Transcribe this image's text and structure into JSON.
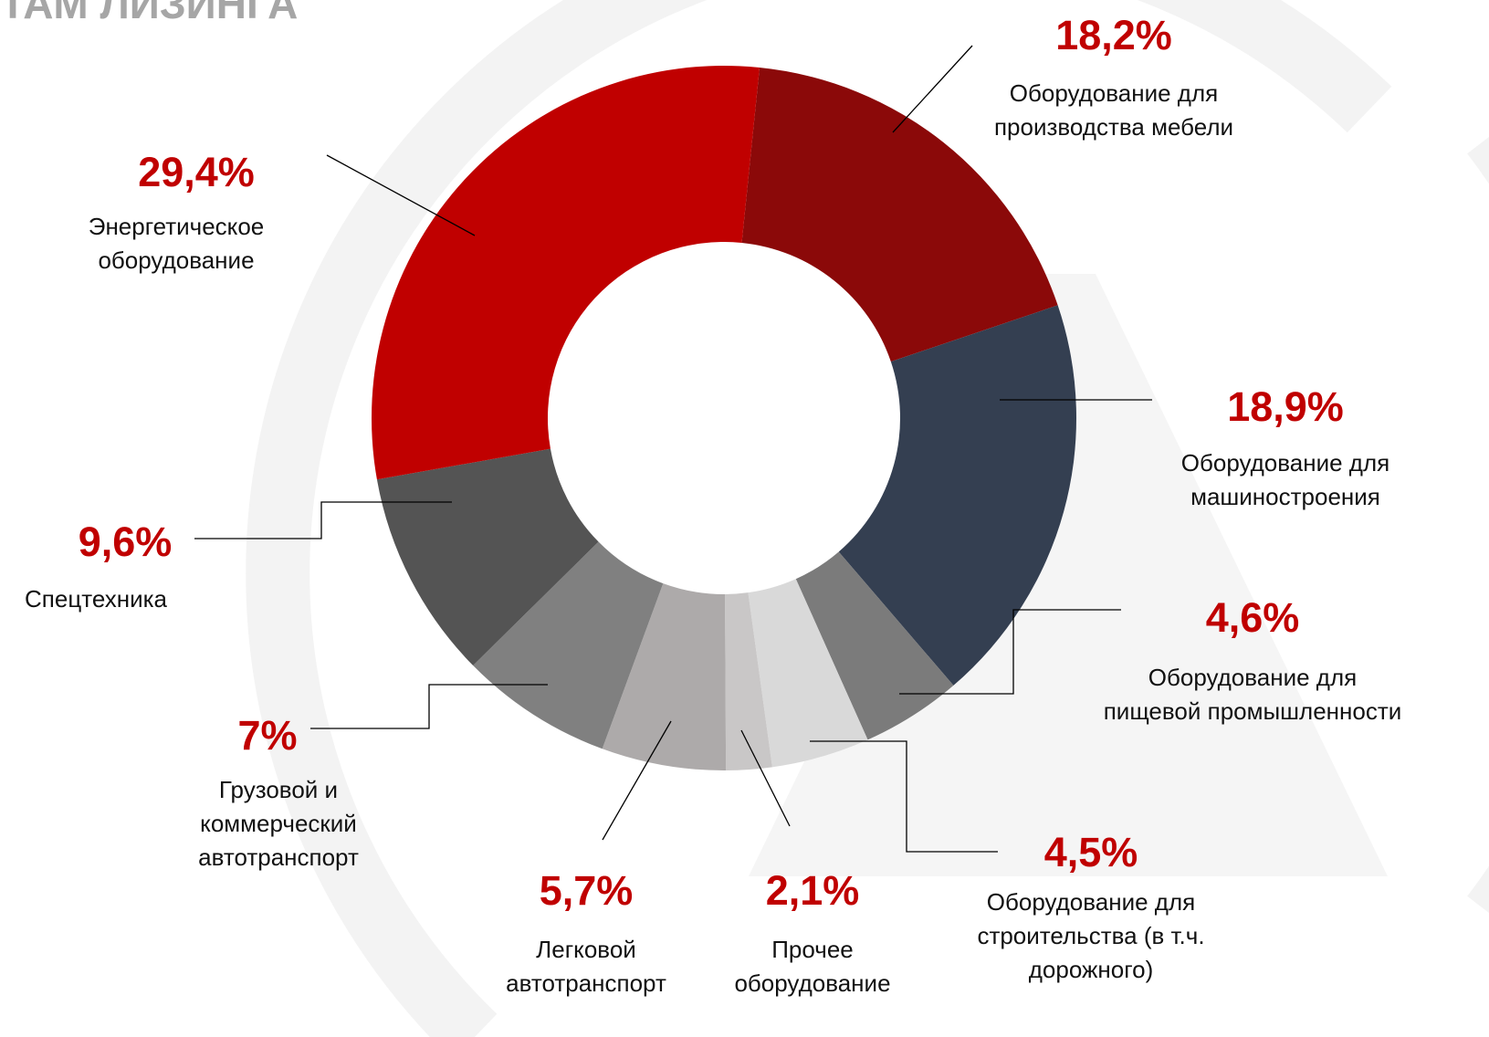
{
  "chart_data": {
    "type": "pie",
    "title": "ТАМ ЛИЗИНГА",
    "categories": [
      [
        "Оборудование для",
        "производства мебели"
      ],
      [
        "Оборудование для",
        "машиностроения"
      ],
      [
        "Оборудование для",
        "пищевой промышленности"
      ],
      [
        "Оборудование для",
        "строительства (в т.ч.",
        "дорожного)"
      ],
      [
        "Прочее",
        "оборудование"
      ],
      [
        "Легковой",
        "автотранспорт"
      ],
      [
        "Грузовой и",
        "коммерческий",
        "автотранспорт"
      ],
      [
        "Спецтехника"
      ],
      [
        "Энергетическое",
        "оборудование"
      ]
    ],
    "values": [
      18.2,
      18.9,
      4.6,
      4.5,
      2.1,
      5.7,
      7,
      9.6,
      29.4
    ],
    "value_labels": [
      "18,2%",
      "18,9%",
      "4,6%",
      "4,5%",
      "2,1%",
      "5,7%",
      "7%",
      "9,6%",
      "29,4%"
    ],
    "colors": [
      "#8b0909",
      "#343f51",
      "#7b7b7b",
      "#d9d9d9",
      "#c9c7c7",
      "#adaaaa",
      "#808080",
      "#545454",
      "#c00000"
    ]
  }
}
